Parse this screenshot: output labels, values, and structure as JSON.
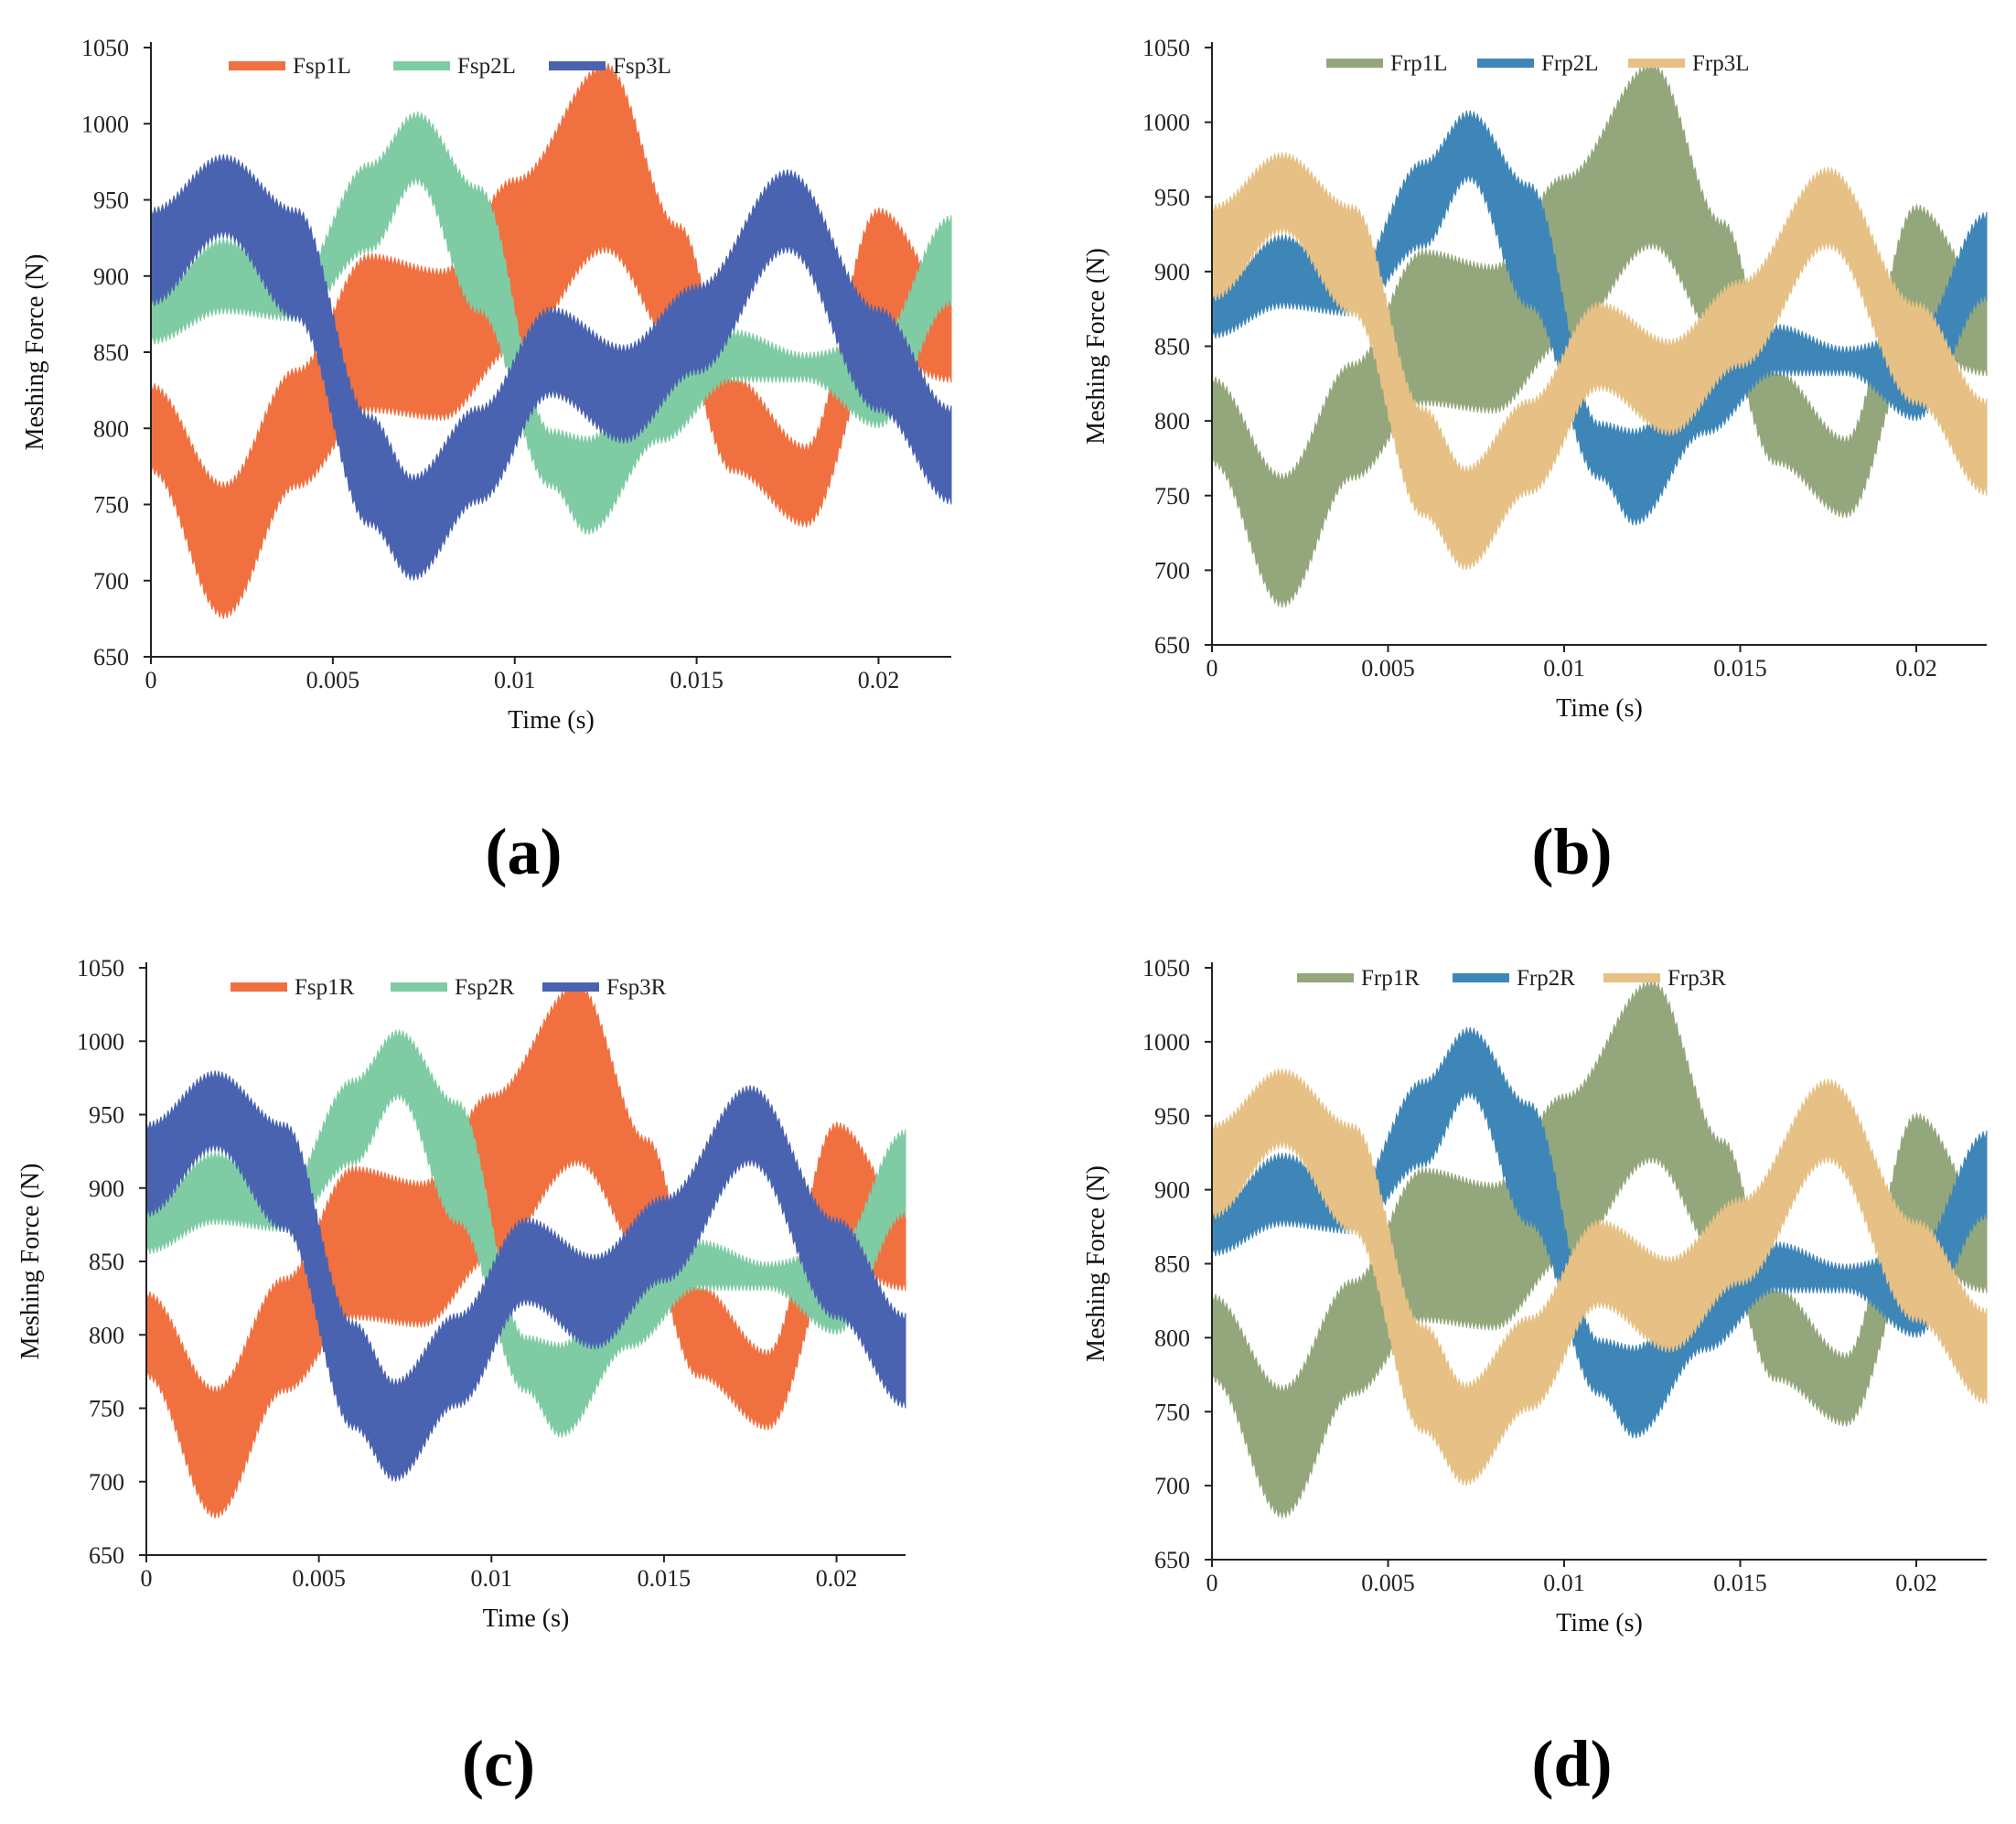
{
  "chart_data": [
    {
      "panel": "(a)",
      "type": "area",
      "title": "",
      "xlabel": "Time (s)",
      "ylabel": "Meshing Force (N)",
      "xlim": [
        0,
        0.022
      ],
      "ylim": [
        650,
        1050
      ],
      "xticks": [
        0,
        0.005,
        0.01,
        0.015,
        0.02
      ],
      "xtick_labels": [
        "0",
        "0.005",
        "0.01",
        "0.015",
        "0.02"
      ],
      "yticks": [
        650,
        700,
        750,
        800,
        850,
        900,
        950,
        1000,
        1050
      ],
      "legend_position": "top-center",
      "series": [
        {
          "name": "Fsp1L",
          "color": "#F07040",
          "x": [
            0,
            0.002,
            0.004,
            0.006,
            0.008,
            0.01,
            0.0125,
            0.0145,
            0.016,
            0.018,
            0.02,
            0.022
          ],
          "upper": [
            830,
            765,
            840,
            915,
            905,
            965,
            1040,
            935,
            835,
            790,
            945,
            890
          ],
          "lower": [
            770,
            675,
            760,
            810,
            805,
            850,
            915,
            850,
            770,
            735,
            845,
            830
          ]
        },
        {
          "name": "Fsp2L",
          "color": "#7FCBA3",
          "x": [
            0,
            0.002,
            0.004,
            0.006,
            0.0073,
            0.009,
            0.011,
            0.012,
            0.014,
            0.016,
            0.018,
            0.02,
            0.022
          ],
          "upper": [
            890,
            925,
            900,
            975,
            1008,
            960,
            800,
            795,
            850,
            865,
            850,
            860,
            940
          ],
          "lower": [
            855,
            875,
            870,
            915,
            960,
            875,
            760,
            730,
            790,
            830,
            830,
            800,
            880
          ]
        },
        {
          "name": "Fsp3L",
          "color": "#4A63B0",
          "x": [
            0,
            0.002,
            0.004,
            0.006,
            0.0072,
            0.009,
            0.011,
            0.013,
            0.015,
            0.0175,
            0.02,
            0.022
          ],
          "upper": [
            945,
            980,
            945,
            810,
            770,
            815,
            880,
            855,
            895,
            970,
            880,
            815
          ],
          "lower": [
            880,
            925,
            870,
            735,
            700,
            750,
            820,
            790,
            835,
            915,
            810,
            750
          ]
        }
      ]
    },
    {
      "panel": "(b)",
      "type": "area",
      "title": "",
      "xlabel": "Time (s)",
      "ylabel": "Meshing Force (N)",
      "xlim": [
        0,
        0.022
      ],
      "ylim": [
        650,
        1050
      ],
      "xticks": [
        0,
        0.005,
        0.01,
        0.015,
        0.02
      ],
      "xtick_labels": [
        "0",
        "0.005",
        "0.01",
        "0.015",
        "0.02"
      ],
      "yticks": [
        650,
        700,
        750,
        800,
        850,
        900,
        950,
        1000,
        1050
      ],
      "legend_position": "top-center",
      "series": [
        {
          "name": "Frp1L",
          "color": "#94A77C",
          "x": [
            0,
            0.002,
            0.004,
            0.006,
            0.008,
            0.01,
            0.0125,
            0.0145,
            0.016,
            0.018,
            0.02,
            0.022
          ],
          "upper": [
            830,
            765,
            840,
            915,
            905,
            965,
            1040,
            935,
            835,
            790,
            945,
            890
          ],
          "lower": [
            770,
            675,
            760,
            810,
            805,
            850,
            915,
            850,
            770,
            735,
            845,
            830
          ]
        },
        {
          "name": "Frp2L",
          "color": "#3F86B8",
          "x": [
            0,
            0.002,
            0.004,
            0.006,
            0.0073,
            0.009,
            0.011,
            0.012,
            0.014,
            0.016,
            0.018,
            0.02,
            0.022
          ],
          "upper": [
            890,
            925,
            900,
            975,
            1008,
            960,
            800,
            795,
            850,
            865,
            850,
            860,
            940
          ],
          "lower": [
            855,
            875,
            870,
            915,
            960,
            875,
            760,
            730,
            790,
            830,
            830,
            800,
            880
          ]
        },
        {
          "name": "Frp3L",
          "color": "#E6C084",
          "x": [
            0,
            0.002,
            0.004,
            0.006,
            0.0072,
            0.009,
            0.011,
            0.013,
            0.015,
            0.0175,
            0.02,
            0.022
          ],
          "upper": [
            945,
            980,
            945,
            810,
            770,
            815,
            880,
            855,
            895,
            970,
            880,
            815
          ],
          "lower": [
            880,
            925,
            870,
            735,
            700,
            750,
            820,
            790,
            835,
            915,
            810,
            750
          ]
        }
      ]
    },
    {
      "panel": "(c)",
      "type": "area",
      "title": "",
      "xlabel": "Time (s)",
      "ylabel": "Meshing Force (N)",
      "xlim": [
        0,
        0.022
      ],
      "ylim": [
        650,
        1050
      ],
      "xticks": [
        0,
        0.005,
        0.01,
        0.015,
        0.02
      ],
      "xtick_labels": [
        "0",
        "0.005",
        "0.01",
        "0.015",
        "0.02"
      ],
      "yticks": [
        650,
        700,
        750,
        800,
        850,
        900,
        950,
        1000,
        1050
      ],
      "legend_position": "top-center",
      "series": [
        {
          "name": "Fsp1R",
          "color": "#F07040",
          "x": [
            0,
            0.002,
            0.004,
            0.006,
            0.008,
            0.01,
            0.0125,
            0.0145,
            0.016,
            0.018,
            0.02,
            0.022
          ],
          "upper": [
            830,
            765,
            840,
            915,
            905,
            965,
            1040,
            935,
            835,
            790,
            945,
            890
          ],
          "lower": [
            770,
            675,
            760,
            810,
            805,
            850,
            915,
            850,
            770,
            735,
            845,
            830
          ]
        },
        {
          "name": "Fsp2R",
          "color": "#7FCBA3",
          "x": [
            0,
            0.002,
            0.004,
            0.006,
            0.0073,
            0.009,
            0.011,
            0.012,
            0.014,
            0.016,
            0.018,
            0.02,
            0.022
          ],
          "upper": [
            890,
            925,
            900,
            975,
            1008,
            960,
            800,
            795,
            850,
            865,
            850,
            860,
            940
          ],
          "lower": [
            855,
            875,
            870,
            915,
            960,
            875,
            760,
            730,
            790,
            830,
            830,
            800,
            880
          ]
        },
        {
          "name": "Fsp3R",
          "color": "#4A63B0",
          "x": [
            0,
            0.002,
            0.004,
            0.006,
            0.0072,
            0.009,
            0.011,
            0.013,
            0.015,
            0.0175,
            0.02,
            0.022
          ],
          "upper": [
            945,
            980,
            945,
            810,
            770,
            815,
            880,
            855,
            895,
            970,
            880,
            815
          ],
          "lower": [
            880,
            925,
            870,
            735,
            700,
            750,
            820,
            790,
            835,
            915,
            810,
            750
          ]
        }
      ]
    },
    {
      "panel": "(d)",
      "type": "area",
      "title": "",
      "xlabel": "Time (s)",
      "ylabel": "Meshing Force (N)",
      "xlim": [
        0,
        0.022
      ],
      "ylim": [
        650,
        1050
      ],
      "xticks": [
        0,
        0.005,
        0.01,
        0.015,
        0.02
      ],
      "xtick_labels": [
        "0",
        "0.005",
        "0.01",
        "0.015",
        "0.02"
      ],
      "yticks": [
        650,
        700,
        750,
        800,
        850,
        900,
        950,
        1000,
        1050
      ],
      "legend_position": "top-center",
      "series": [
        {
          "name": "Frp1R",
          "color": "#94A77C",
          "x": [
            0,
            0.002,
            0.004,
            0.006,
            0.008,
            0.01,
            0.0125,
            0.0145,
            0.016,
            0.018,
            0.02,
            0.022
          ],
          "upper": [
            830,
            768,
            840,
            915,
            905,
            965,
            1042,
            935,
            835,
            790,
            952,
            890
          ],
          "lower": [
            770,
            678,
            760,
            810,
            805,
            850,
            918,
            850,
            770,
            740,
            850,
            830
          ]
        },
        {
          "name": "Frp2R",
          "color": "#3F86B8",
          "x": [
            0,
            0.002,
            0.004,
            0.006,
            0.0073,
            0.009,
            0.011,
            0.012,
            0.014,
            0.016,
            0.018,
            0.02,
            0.022
          ],
          "upper": [
            890,
            925,
            900,
            975,
            1010,
            960,
            800,
            795,
            850,
            865,
            850,
            860,
            940
          ],
          "lower": [
            855,
            875,
            870,
            915,
            962,
            875,
            760,
            732,
            790,
            830,
            830,
            800,
            880
          ]
        },
        {
          "name": "Frp3R",
          "color": "#E6C084",
          "x": [
            0,
            0.002,
            0.004,
            0.006,
            0.0072,
            0.009,
            0.011,
            0.013,
            0.015,
            0.0175,
            0.02,
            0.022
          ],
          "upper": [
            945,
            982,
            945,
            810,
            770,
            815,
            880,
            855,
            895,
            975,
            880,
            820
          ],
          "lower": [
            880,
            928,
            870,
            735,
            700,
            750,
            820,
            790,
            835,
            918,
            810,
            755
          ]
        }
      ]
    }
  ]
}
